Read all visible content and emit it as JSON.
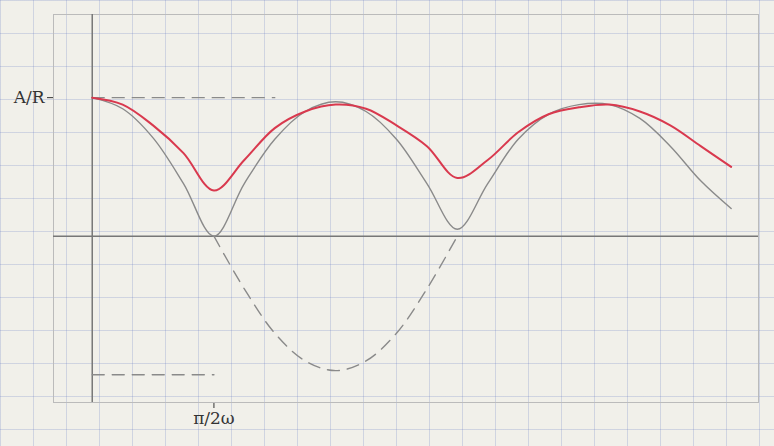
{
  "chart_data": {
    "type": "line",
    "x": [
      0,
      0.393,
      0.785,
      1.178,
      1.571,
      1.963,
      2.356,
      2.749,
      3.142,
      3.534,
      3.927,
      4.32,
      4.712,
      5.105,
      5.498,
      5.89,
      6.283,
      6.676,
      7.069,
      7.461,
      7.854,
      8.247
    ],
    "series": [
      {
        "color": "#8a8a8a",
        "line_style": "solid",
        "values": [
          1,
          0.92,
          0.71,
          0.38,
          0,
          0.38,
          0.7,
          0.9,
          0.97,
          0.9,
          0.7,
          0.38,
          0.05,
          0.38,
          0.7,
          0.88,
          0.95,
          0.95,
          0.85,
          0.65,
          0.4,
          0.2
        ]
      },
      {
        "color": "#8a8a8a",
        "line_style": "dashed",
        "values": [
          null,
          null,
          null,
          null,
          0,
          -0.38,
          -0.7,
          -0.9,
          -0.97,
          -0.9,
          -0.7,
          -0.38,
          0,
          null,
          null,
          null,
          null,
          null,
          null,
          null,
          null,
          null
        ]
      },
      {
        "color": "#8a8a8a",
        "line_style": "dashed",
        "values": [
          1,
          1,
          1,
          1,
          1,
          1,
          1,
          null,
          null,
          null,
          null,
          null,
          null,
          null,
          null,
          null,
          null,
          null,
          null,
          null,
          null,
          null
        ]
      },
      {
        "color": "#8a8a8a",
        "line_style": "dashed",
        "values": [
          -1,
          -1,
          -1,
          -1,
          -1,
          null,
          null,
          null,
          null,
          null,
          null,
          null,
          null,
          null,
          null,
          null,
          null,
          null,
          null,
          null,
          null,
          null
        ]
      },
      {
        "color": "#d9394e",
        "line_style": "solid",
        "values": [
          1,
          0.95,
          0.8,
          0.6,
          0.33,
          0.55,
          0.78,
          0.9,
          0.95,
          0.92,
          0.8,
          0.65,
          0.42,
          0.55,
          0.75,
          0.88,
          0.93,
          0.95,
          0.9,
          0.8,
          0.65,
          0.5
        ]
      }
    ],
    "xlim": [
      -0.5,
      8.6
    ],
    "ylim": [
      -1.2,
      1.6
    ],
    "xticks": [
      {
        "value": 1.5708,
        "label": "π/2ω"
      }
    ],
    "yticks": [
      {
        "value": 1,
        "label": "A/R"
      }
    ]
  }
}
